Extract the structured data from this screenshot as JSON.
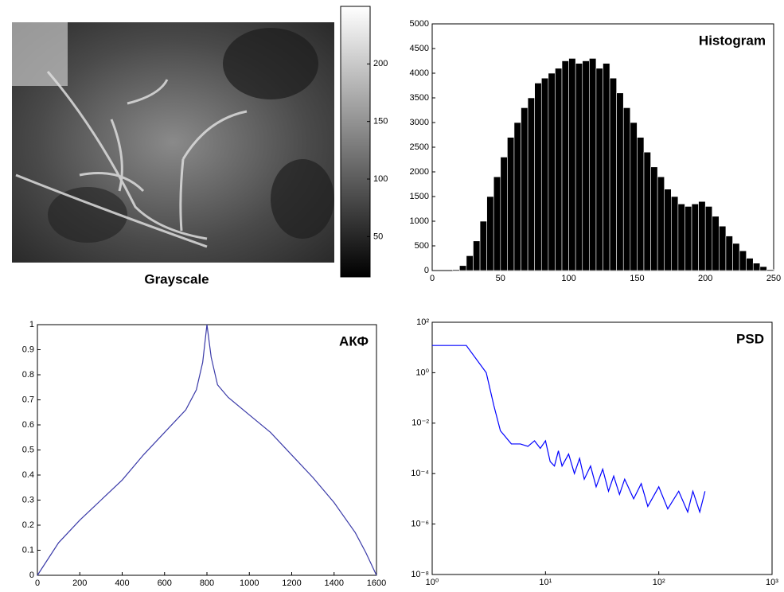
{
  "chart_data": [
    {
      "type": "image",
      "title": "Grayscale",
      "clim": [
        15,
        250
      ],
      "cticks": [
        50,
        100,
        150,
        200
      ]
    },
    {
      "type": "histogram",
      "title": "Histogram",
      "color": "#000000",
      "bins": [
        0,
        5,
        10,
        15,
        20,
        25,
        30,
        35,
        40,
        45,
        50,
        55,
        60,
        65,
        70,
        75,
        80,
        85,
        90,
        95,
        100,
        105,
        110,
        115,
        120,
        125,
        130,
        135,
        140,
        145,
        150,
        155,
        160,
        165,
        170,
        175,
        180,
        185,
        190,
        195,
        200,
        205,
        210,
        215,
        220,
        225,
        230,
        235,
        240,
        245,
        250
      ],
      "values": [
        0,
        0,
        0,
        20,
        100,
        300,
        600,
        1000,
        1500,
        1900,
        2300,
        2700,
        3000,
        3300,
        3500,
        3800,
        3900,
        4000,
        4100,
        4250,
        4300,
        4200,
        4250,
        4300,
        4100,
        4200,
        3900,
        3600,
        3300,
        3000,
        2700,
        2400,
        2100,
        1900,
        1650,
        1500,
        1350,
        1300,
        1350,
        1400,
        1300,
        1100,
        900,
        700,
        550,
        400,
        250,
        150,
        80,
        20
      ],
      "xlim": [
        0,
        250
      ],
      "ylim": [
        0,
        5000
      ],
      "xticks": [
        0,
        50,
        100,
        150,
        200,
        250
      ],
      "yticks": [
        0,
        500,
        1000,
        1500,
        2000,
        2500,
        3000,
        3500,
        4000,
        4500,
        5000
      ]
    },
    {
      "type": "line",
      "title": "АКФ",
      "color": "#3a3aa8",
      "x": [
        0,
        100,
        200,
        300,
        400,
        500,
        600,
        700,
        750,
        780,
        800,
        820,
        850,
        900,
        1000,
        1100,
        1200,
        1300,
        1400,
        1500,
        1550,
        1600
      ],
      "values": [
        0,
        0.13,
        0.22,
        0.3,
        0.38,
        0.48,
        0.57,
        0.66,
        0.74,
        0.85,
        1.0,
        0.87,
        0.76,
        0.71,
        0.64,
        0.57,
        0.48,
        0.39,
        0.29,
        0.17,
        0.09,
        0
      ],
      "xlim": [
        0,
        1600
      ],
      "ylim": [
        0,
        1
      ],
      "xticks": [
        0,
        200,
        400,
        600,
        800,
        1000,
        1200,
        1400,
        1600
      ],
      "yticks": [
        0,
        0.1,
        0.2,
        0.3,
        0.4,
        0.5,
        0.6,
        0.7,
        0.8,
        0.9,
        1
      ]
    },
    {
      "type": "line",
      "title": "PSD",
      "color": "#0000ff",
      "xscale": "log",
      "yscale": "log",
      "x": [
        1,
        2,
        3,
        3.5,
        4,
        5,
        6,
        7,
        8,
        9,
        10,
        11,
        12,
        13,
        14,
        16,
        18,
        20,
        22,
        25,
        28,
        32,
        36,
        40,
        45,
        50,
        60,
        70,
        80,
        100,
        120,
        150,
        180,
        200,
        230,
        256
      ],
      "values": [
        12,
        12,
        1,
        0.05,
        0.005,
        0.0015,
        0.0015,
        0.0012,
        0.002,
        0.001,
        0.002,
        0.0003,
        0.0002,
        0.0008,
        0.0002,
        0.0006,
        0.0001,
        0.0004,
        6e-05,
        0.0002,
        3e-05,
        0.00015,
        2e-05,
        8e-05,
        1.5e-05,
        6e-05,
        1e-05,
        4e-05,
        5e-06,
        3e-05,
        4e-06,
        2e-05,
        3e-06,
        2e-05,
        3e-06,
        2e-05
      ],
      "xlim": [
        1,
        1000
      ],
      "ylim": [
        1e-08,
        100
      ],
      "xticks": [
        {
          "value": 1,
          "label": "10⁰"
        },
        {
          "value": 10,
          "label": "10¹"
        },
        {
          "value": 100,
          "label": "10²"
        },
        {
          "value": 1000,
          "label": "10³"
        }
      ],
      "yticks": [
        {
          "value": 1e-08,
          "label": "10⁻⁸"
        },
        {
          "value": 1e-06,
          "label": "10⁻⁶"
        },
        {
          "value": 0.0001,
          "label": "10⁻⁴"
        },
        {
          "value": 0.01,
          "label": "10⁻²"
        },
        {
          "value": 1,
          "label": "10⁰"
        },
        {
          "value": 100,
          "label": "10²"
        }
      ]
    }
  ]
}
